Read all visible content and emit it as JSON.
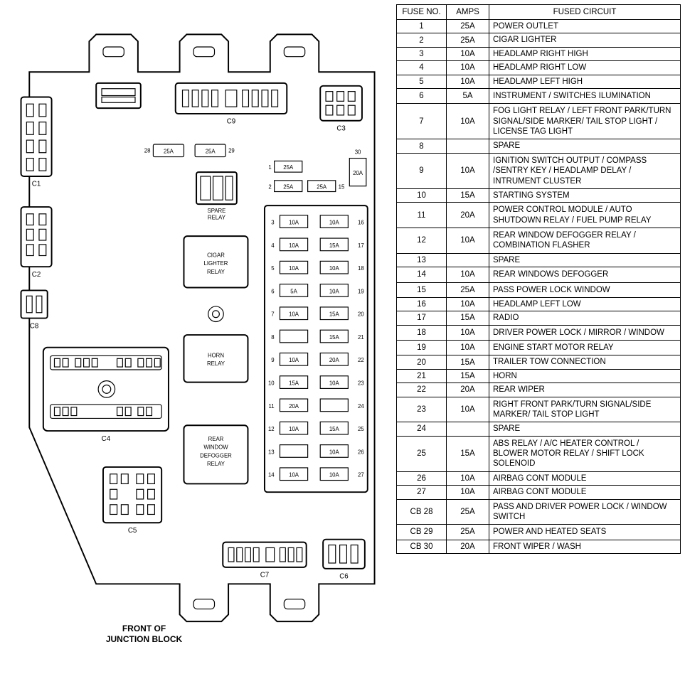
{
  "labels": {
    "front_of": "FRONT OF",
    "junction_block": "JUNCTION BLOCK",
    "spare_relay": "SPARE\nRELAY",
    "cigar_lighter_relay": "CIGAR\nLIGHTER\nRELAY",
    "horn_relay": "HORN\nRELAY",
    "rear_window_defogger_relay": "REAR\nWINDOW\nDEFOGGER\nRELAY",
    "c1": "C1",
    "c2": "C2",
    "c3": "C3",
    "c4": "C4",
    "c5": "C5",
    "c6": "C6",
    "c7": "C7",
    "c8": "C8",
    "c9": "C9"
  },
  "topFuses": {
    "f28": "25A",
    "f29": "25A",
    "f30": "20A",
    "f1": "25A",
    "f2": "25A",
    "f15": "25A"
  },
  "fuseGrid": [
    {
      "ln": "3",
      "la": "10A",
      "ra": "10A",
      "rn": "16"
    },
    {
      "ln": "4",
      "la": "10A",
      "ra": "15A",
      "rn": "17"
    },
    {
      "ln": "5",
      "la": "10A",
      "ra": "10A",
      "rn": "18"
    },
    {
      "ln": "6",
      "la": "5A",
      "ra": "10A",
      "rn": "19"
    },
    {
      "ln": "7",
      "la": "10A",
      "ra": "15A",
      "rn": "20"
    },
    {
      "ln": "8",
      "la": "",
      "ra": "15A",
      "rn": "21"
    },
    {
      "ln": "9",
      "la": "10A",
      "ra": "20A",
      "rn": "22"
    },
    {
      "ln": "10",
      "la": "15A",
      "ra": "10A",
      "rn": "23"
    },
    {
      "ln": "11",
      "la": "20A",
      "ra": "",
      "rn": "24"
    },
    {
      "ln": "12",
      "la": "10A",
      "ra": "15A",
      "rn": "25"
    },
    {
      "ln": "13",
      "la": "",
      "ra": "10A",
      "rn": "26"
    },
    {
      "ln": "14",
      "la": "10A",
      "ra": "10A",
      "rn": "27"
    }
  ],
  "tableHeaders": {
    "no": "FUSE NO.",
    "amps": "AMPS",
    "circ": "FUSED CIRCUIT"
  },
  "tableRows": [
    {
      "no": "1",
      "amps": "25A",
      "circ": "POWER OUTLET"
    },
    {
      "no": "2",
      "amps": "25A",
      "circ": "CIGAR LIGHTER"
    },
    {
      "no": "3",
      "amps": "10A",
      "circ": "HEADLAMP RIGHT HIGH"
    },
    {
      "no": "4",
      "amps": "10A",
      "circ": "HEADLAMP RIGHT LOW"
    },
    {
      "no": "5",
      "amps": "10A",
      "circ": "HEADLAMP LEFT HIGH"
    },
    {
      "no": "6",
      "amps": "5A",
      "circ": "INSTRUMENT / SWITCHES ILUMINATION",
      "tall": true
    },
    {
      "no": "7",
      "amps": "10A",
      "circ": "FOG LIGHT RELAY / LEFT FRONT PARK/TURN SIGNAL/SIDE MARKER/ TAIL STOP LIGHT / LICENSE TAG LIGHT",
      "tall": true
    },
    {
      "no": "8",
      "amps": "",
      "circ": "SPARE"
    },
    {
      "no": "9",
      "amps": "10A",
      "circ": "IGNITION SWITCH OUTPUT / COMPASS /SENTRY KEY / HEADLAMP DELAY / INTRUMENT CLUSTER",
      "tall": true
    },
    {
      "no": "10",
      "amps": "15A",
      "circ": "STARTING SYSTEM"
    },
    {
      "no": "11",
      "amps": "20A",
      "circ": "POWER CONTROL MODULE / AUTO SHUTDOWN RELAY / FUEL PUMP RELAY",
      "tall": true
    },
    {
      "no": "12",
      "amps": "10A",
      "circ": "REAR WINDOW DEFOGGER RELAY / COMBINATION FLASHER",
      "tall": true
    },
    {
      "no": "13",
      "amps": "",
      "circ": "SPARE"
    },
    {
      "no": "14",
      "amps": "10A",
      "circ": "REAR WINDOWS DEFOGGER",
      "tall": true
    },
    {
      "no": "15",
      "amps": "25A",
      "circ": "PASS POWER LOCK WINDOW",
      "tall": true
    },
    {
      "no": "16",
      "amps": "10A",
      "circ": "HEADLAMP LEFT LOW"
    },
    {
      "no": "17",
      "amps": "15A",
      "circ": "RADIO"
    },
    {
      "no": "18",
      "amps": "10A",
      "circ": "DRIVER POWER LOCK / MIRROR / WINDOW",
      "tall": true
    },
    {
      "no": "19",
      "amps": "10A",
      "circ": "ENGINE START MOTOR RELAY",
      "tall": true
    },
    {
      "no": "20",
      "amps": "15A",
      "circ": "TRAILER TOW CONNECTION"
    },
    {
      "no": "21",
      "amps": "15A",
      "circ": "HORN"
    },
    {
      "no": "22",
      "amps": "20A",
      "circ": "REAR WIPER"
    },
    {
      "no": "23",
      "amps": "10A",
      "circ": "RIGHT FRONT PARK/TURN SIGNAL/SIDE MARKER/ TAIL STOP LIGHT",
      "tall": true
    },
    {
      "no": "24",
      "amps": "",
      "circ": "SPARE"
    },
    {
      "no": "25",
      "amps": "15A",
      "circ": "ABS RELAY / A/C HEATER CONTROL / BLOWER MOTOR RELAY / SHIFT LOCK SOLENOID",
      "tall": true
    },
    {
      "no": "26",
      "amps": "10A",
      "circ": "AIRBAG CONT MODULE"
    },
    {
      "no": "27",
      "amps": "10A",
      "circ": "AIRBAG CONT MODULE"
    },
    {
      "no": "CB 28",
      "amps": "25A",
      "circ": "PASS AND DRIVER POWER LOCK / WINDOW SWITCH",
      "tall": true
    },
    {
      "no": "CB 29",
      "amps": "25A",
      "circ": "POWER AND HEATED SEATS",
      "tall": true
    },
    {
      "no": "CB 30",
      "amps": "20A",
      "circ": "FRONT WIPER / WASH"
    }
  ],
  "style": {
    "bg": "#ffffff",
    "stroke": "#000000",
    "font": "Arial",
    "diagram_width": 555,
    "table_font_size": 11.5
  }
}
